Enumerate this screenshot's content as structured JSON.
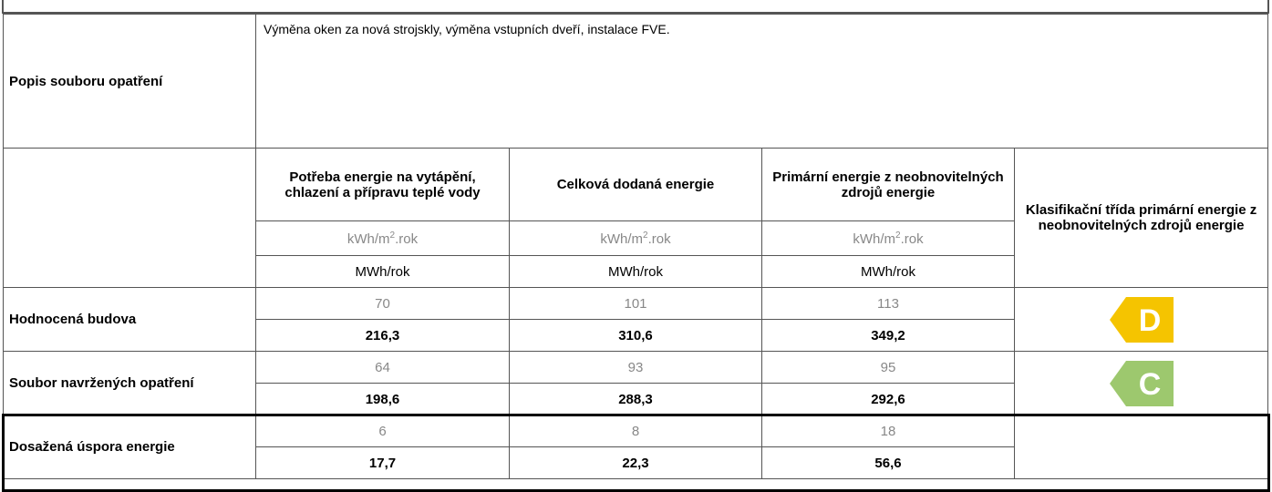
{
  "description": {
    "label": "Popis souboru opatření",
    "text": "Výměna oken za nová strojskly, výměna vstupních dveří, instalace FVE."
  },
  "table": {
    "headers": [
      "Potřeba energie na vytápění, chlazení a přípravu teplé vody",
      "Celková dodaná energie",
      "Primární energie z neobnovitelných zdrojů energie"
    ],
    "class_header": "Klasifikační třída primární energie z neobnovitelných zdrojů energie",
    "unit_area": [
      {
        "base": "kWh/m",
        "sup": "2",
        "rest": ".rok"
      },
      {
        "base": "kWh/m",
        "sup": "2",
        "rest": ".rok"
      },
      {
        "base": "kWh/m",
        "sup": "2",
        "rest": ".rok"
      }
    ],
    "unit_total": [
      "MWh/rok",
      "MWh/rok",
      "MWh/rok"
    ],
    "rows": [
      {
        "label": "Hodnocená budova",
        "area": [
          "70",
          "101",
          "113"
        ],
        "total": [
          "216,3",
          "310,6",
          "349,2"
        ],
        "class": "D",
        "class_color": "#f5c400"
      },
      {
        "label": "Soubor navržených opatření",
        "area": [
          "64",
          "93",
          "95"
        ],
        "total": [
          "198,6",
          "288,3",
          "292,6"
        ],
        "class": "C",
        "class_color": "#9dc86e"
      },
      {
        "label": "Dosažená úspora energie",
        "area": [
          "6",
          "8",
          "18"
        ],
        "total": [
          "17,7",
          "22,3",
          "56,6"
        ]
      }
    ]
  }
}
